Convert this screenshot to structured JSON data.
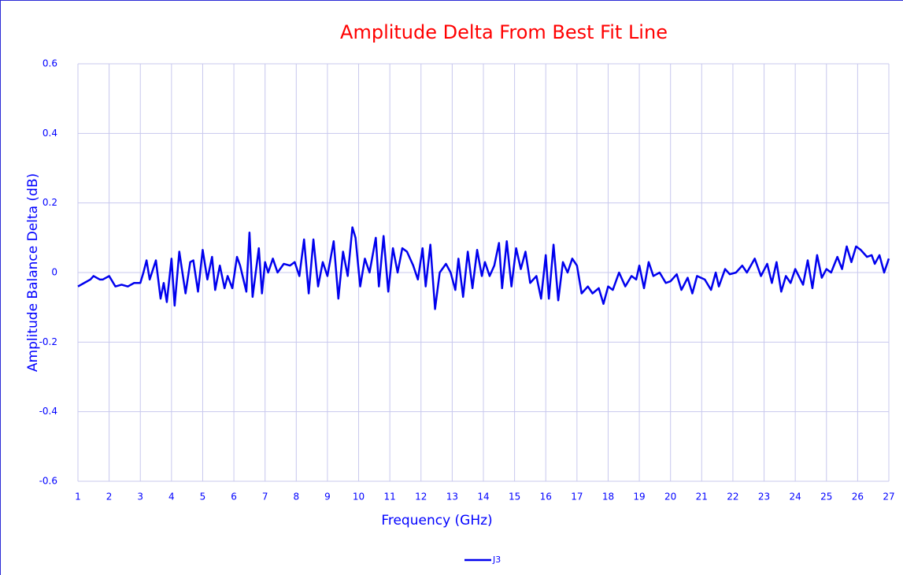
{
  "chart_data": {
    "type": "line",
    "title": "Amplitude Delta From Best Fit Line",
    "xlabel": "Frequency (GHz)",
    "ylabel": "Amplitude Balance Delta (dB)",
    "xlim": [
      1,
      27
    ],
    "xticks": [
      1,
      2,
      3,
      4,
      5,
      6,
      7,
      8,
      9,
      10,
      11,
      12,
      13,
      14,
      15,
      16,
      17,
      18,
      19,
      20,
      21,
      22,
      23,
      24,
      25,
      26,
      27
    ],
    "ylim": [
      -0.6,
      0.6
    ],
    "yticks": [
      -0.6,
      -0.4,
      -0.2,
      0,
      0.2,
      0.4,
      0.6
    ],
    "grid": true,
    "legend": "bottom",
    "x": [
      1.0,
      1.2,
      1.4,
      1.5,
      1.7,
      1.8,
      2.0,
      2.2,
      2.4,
      2.6,
      2.8,
      3.0,
      3.1,
      3.2,
      3.3,
      3.5,
      3.65,
      3.75,
      3.85,
      4.0,
      4.1,
      4.25,
      4.45,
      4.6,
      4.7,
      4.85,
      5.0,
      5.15,
      5.3,
      5.4,
      5.55,
      5.7,
      5.8,
      5.95,
      6.1,
      6.2,
      6.4,
      6.5,
      6.6,
      6.8,
      6.9,
      7.0,
      7.1,
      7.25,
      7.4,
      7.6,
      7.8,
      7.95,
      8.1,
      8.25,
      8.4,
      8.55,
      8.7,
      8.85,
      9.0,
      9.2,
      9.35,
      9.5,
      9.65,
      9.8,
      9.9,
      10.05,
      10.2,
      10.35,
      10.55,
      10.65,
      10.8,
      10.95,
      11.1,
      11.25,
      11.4,
      11.55,
      11.75,
      11.9,
      12.05,
      12.15,
      12.3,
      12.45,
      12.6,
      12.8,
      12.95,
      13.1,
      13.2,
      13.35,
      13.5,
      13.65,
      13.8,
      13.95,
      14.05,
      14.2,
      14.35,
      14.5,
      14.6,
      14.75,
      14.9,
      15.05,
      15.2,
      15.35,
      15.5,
      15.7,
      15.85,
      16.0,
      16.1,
      16.25,
      16.4,
      16.55,
      16.7,
      16.85,
      17.0,
      17.15,
      17.35,
      17.5,
      17.7,
      17.85,
      18.0,
      18.15,
      18.35,
      18.55,
      18.75,
      18.9,
      19.0,
      19.15,
      19.3,
      19.45,
      19.65,
      19.85,
      20.0,
      20.2,
      20.35,
      20.55,
      20.7,
      20.85,
      21.1,
      21.3,
      21.45,
      21.55,
      21.75,
      21.9,
      22.1,
      22.3,
      22.45,
      22.7,
      22.9,
      23.1,
      23.25,
      23.4,
      23.55,
      23.7,
      23.85,
      24.0,
      24.25,
      24.4,
      24.55,
      24.7,
      24.85,
      25.0,
      25.15,
      25.35,
      25.5,
      25.65,
      25.8,
      25.95,
      26.1,
      26.3,
      26.45,
      26.55,
      26.7,
      26.85,
      27.0
    ],
    "series": [
      {
        "name": "J3",
        "color": "#0000ee",
        "values": [
          -0.04,
          -0.03,
          -0.02,
          -0.01,
          -0.02,
          -0.02,
          -0.01,
          -0.04,
          -0.035,
          -0.04,
          -0.03,
          -0.03,
          0.0,
          0.035,
          -0.02,
          0.035,
          -0.075,
          -0.03,
          -0.085,
          0.04,
          -0.095,
          0.06,
          -0.06,
          0.03,
          0.035,
          -0.055,
          0.065,
          -0.02,
          0.045,
          -0.05,
          0.02,
          -0.045,
          -0.01,
          -0.045,
          0.045,
          0.02,
          -0.055,
          0.115,
          -0.07,
          0.07,
          -0.06,
          0.03,
          0.0,
          0.04,
          0.0,
          0.025,
          0.02,
          0.03,
          -0.01,
          0.095,
          -0.06,
          0.095,
          -0.04,
          0.03,
          -0.01,
          0.09,
          -0.075,
          0.06,
          -0.01,
          0.13,
          0.1,
          -0.04,
          0.04,
          0.0,
          0.1,
          -0.04,
          0.105,
          -0.055,
          0.07,
          0.0,
          0.07,
          0.06,
          0.02,
          -0.02,
          0.07,
          -0.04,
          0.08,
          -0.105,
          0.0,
          0.025,
          0.0,
          -0.05,
          0.04,
          -0.07,
          0.06,
          -0.045,
          0.065,
          -0.01,
          0.03,
          -0.01,
          0.02,
          0.085,
          -0.045,
          0.09,
          -0.04,
          0.07,
          0.01,
          0.06,
          -0.03,
          -0.01,
          -0.075,
          0.05,
          -0.075,
          0.08,
          -0.08,
          0.03,
          0.0,
          0.04,
          0.02,
          -0.06,
          -0.04,
          -0.06,
          -0.045,
          -0.09,
          -0.04,
          -0.05,
          0.0,
          -0.04,
          -0.01,
          -0.02,
          0.02,
          -0.045,
          0.03,
          -0.01,
          0.0,
          -0.03,
          -0.025,
          -0.005,
          -0.05,
          -0.015,
          -0.06,
          -0.01,
          -0.02,
          -0.05,
          0.0,
          -0.04,
          0.01,
          -0.005,
          0.0,
          0.02,
          0.0,
          0.04,
          -0.01,
          0.025,
          -0.03,
          0.03,
          -0.055,
          -0.01,
          -0.03,
          0.01,
          -0.035,
          0.035,
          -0.045,
          0.05,
          -0.015,
          0.01,
          0.0,
          0.045,
          0.01,
          0.075,
          0.03,
          0.075,
          0.065,
          0.045,
          0.05,
          0.025,
          0.05,
          0.0,
          0.04
        ]
      }
    ]
  }
}
